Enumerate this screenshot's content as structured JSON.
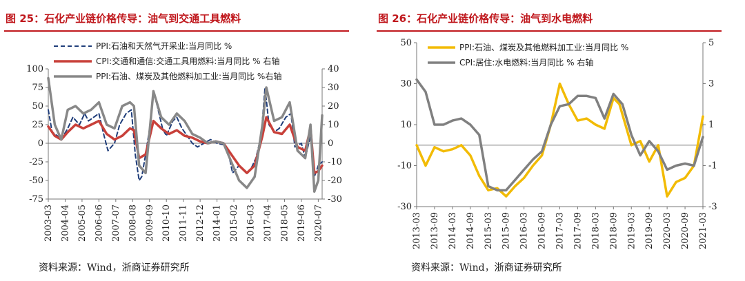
{
  "chart_data": [
    {
      "type": "line",
      "title": "图 25：石化产业链价格传导：油气到交通工具燃料",
      "source": "资料来源：Wind，浙商证券研究所",
      "ylim_left": [
        -75,
        100
      ],
      "yticks_left": [
        100,
        75,
        50,
        25,
        0,
        -25,
        -50,
        -75
      ],
      "ylim_right": [
        -30,
        40
      ],
      "yticks_right": [
        40,
        30,
        20,
        10,
        0,
        -10,
        -20,
        -30
      ],
      "x_start": "2003-03",
      "x_end": "2020-10",
      "x_ticks": [
        "2003-03",
        "2004-04",
        "2005-05",
        "2006-06",
        "2007-07",
        "2008-08",
        "2009-09",
        "2010-10",
        "2011-11",
        "2012-12",
        "2014-01",
        "2015-02",
        "2016-03",
        "2017-04",
        "2018-05",
        "2019-06",
        "2020-07"
      ],
      "series": [
        {
          "name": "PPI:石油和天然气开采业:当月同比 %",
          "axis": "left",
          "style": "dashed",
          "color": "#1f3d7a",
          "points": [
            [
              "2003-03",
              45
            ],
            [
              "2003-06",
              15
            ],
            [
              "2003-10",
              10
            ],
            [
              "2004-01",
              5
            ],
            [
              "2004-06",
              20
            ],
            [
              "2004-10",
              35
            ],
            [
              "2005-03",
              25
            ],
            [
              "2005-07",
              40
            ],
            [
              "2005-10",
              30
            ],
            [
              "2006-02",
              35
            ],
            [
              "2006-06",
              40
            ],
            [
              "2006-10",
              10
            ],
            [
              "2007-01",
              -10
            ],
            [
              "2007-06",
              0
            ],
            [
              "2007-10",
              25
            ],
            [
              "2008-03",
              40
            ],
            [
              "2008-07",
              45
            ],
            [
              "2008-10",
              -15
            ],
            [
              "2009-01",
              -50
            ],
            [
              "2009-03",
              -45
            ],
            [
              "2009-06",
              -15
            ],
            [
              "2009-10",
              30
            ],
            [
              "2009-12",
              70
            ],
            [
              "2010-03",
              50
            ],
            [
              "2010-07",
              20
            ],
            [
              "2010-10",
              10
            ],
            [
              "2011-03",
              30
            ],
            [
              "2011-06",
              35
            ],
            [
              "2011-10",
              20
            ],
            [
              "2012-02",
              10
            ],
            [
              "2012-06",
              0
            ],
            [
              "2012-10",
              -5
            ],
            [
              "2013-03",
              0
            ],
            [
              "2013-08",
              5
            ],
            [
              "2014-01",
              0
            ],
            [
              "2014-06",
              -2
            ],
            [
              "2014-10",
              -15
            ],
            [
              "2015-01",
              -40
            ],
            [
              "2015-06",
              -30
            ],
            [
              "2015-12",
              -40
            ],
            [
              "2016-03",
              -35
            ],
            [
              "2016-07",
              -20
            ],
            [
              "2016-11",
              10
            ],
            [
              "2017-02",
              75
            ],
            [
              "2017-05",
              25
            ],
            [
              "2017-09",
              15
            ],
            [
              "2018-01",
              20
            ],
            [
              "2018-06",
              35
            ],
            [
              "2018-10",
              40
            ],
            [
              "2019-01",
              -5
            ],
            [
              "2019-06",
              0
            ],
            [
              "2019-09",
              -20
            ],
            [
              "2020-01",
              10
            ],
            [
              "2020-04",
              -45
            ],
            [
              "2020-07",
              -30
            ],
            [
              "2020-10",
              -25
            ]
          ]
        },
        {
          "name": "CPI:交通和通信:交通工具用燃料:当月同比 %  右轴",
          "axis": "right",
          "style": "solid",
          "color": "#c8403a",
          "points": [
            [
              "2003-03",
              9
            ],
            [
              "2003-08",
              4
            ],
            [
              "2004-01",
              2
            ],
            [
              "2004-06",
              6
            ],
            [
              "2004-12",
              10
            ],
            [
              "2005-06",
              8
            ],
            [
              "2005-12",
              10
            ],
            [
              "2006-06",
              12
            ],
            [
              "2006-12",
              5
            ],
            [
              "2007-06",
              2
            ],
            [
              "2007-12",
              4
            ],
            [
              "2008-06",
              8
            ],
            [
              "2008-09",
              7
            ],
            [
              "2009-01",
              -8
            ],
            [
              "2009-06",
              -6
            ],
            [
              "2009-12",
              12
            ],
            [
              "2010-06",
              8
            ],
            [
              "2010-12",
              5
            ],
            [
              "2011-06",
              7
            ],
            [
              "2011-12",
              4
            ],
            [
              "2012-06",
              3
            ],
            [
              "2012-12",
              1
            ],
            [
              "2013-06",
              0
            ],
            [
              "2013-12",
              1
            ],
            [
              "2014-06",
              0
            ],
            [
              "2014-12",
              -6
            ],
            [
              "2015-06",
              -12
            ],
            [
              "2015-12",
              -16
            ],
            [
              "2016-06",
              -12
            ],
            [
              "2016-12",
              4
            ],
            [
              "2017-03",
              14
            ],
            [
              "2017-09",
              6
            ],
            [
              "2018-03",
              5
            ],
            [
              "2018-09",
              10
            ],
            [
              "2019-03",
              -2
            ],
            [
              "2019-09",
              -4
            ],
            [
              "2020-01",
              8
            ],
            [
              "2020-04",
              -16
            ],
            [
              "2020-07",
              -15
            ],
            [
              "2020-10",
              -12
            ]
          ]
        },
        {
          "name": "PPI:石油、煤炭及其他燃料加工业:当月同比 %右轴",
          "axis": "right",
          "style": "solid",
          "color": "#888888",
          "points": [
            [
              "2003-03",
              35
            ],
            [
              "2003-08",
              10
            ],
            [
              "2004-01",
              2
            ],
            [
              "2004-06",
              18
            ],
            [
              "2004-12",
              20
            ],
            [
              "2005-06",
              16
            ],
            [
              "2005-12",
              18
            ],
            [
              "2006-06",
              22
            ],
            [
              "2006-12",
              10
            ],
            [
              "2007-06",
              8
            ],
            [
              "2007-12",
              20
            ],
            [
              "2008-06",
              22
            ],
            [
              "2008-09",
              20
            ],
            [
              "2009-01",
              -12
            ],
            [
              "2009-06",
              -16
            ],
            [
              "2009-12",
              28
            ],
            [
              "2010-06",
              14
            ],
            [
              "2010-12",
              10
            ],
            [
              "2011-06",
              16
            ],
            [
              "2011-12",
              12
            ],
            [
              "2012-06",
              5
            ],
            [
              "2012-12",
              3
            ],
            [
              "2013-06",
              0
            ],
            [
              "2013-12",
              1
            ],
            [
              "2014-06",
              0
            ],
            [
              "2014-12",
              -10
            ],
            [
              "2015-06",
              -20
            ],
            [
              "2015-12",
              -24
            ],
            [
              "2016-06",
              -18
            ],
            [
              "2016-12",
              10
            ],
            [
              "2017-03",
              30
            ],
            [
              "2017-09",
              12
            ],
            [
              "2018-03",
              14
            ],
            [
              "2018-09",
              22
            ],
            [
              "2019-03",
              -4
            ],
            [
              "2019-09",
              -8
            ],
            [
              "2020-01",
              10
            ],
            [
              "2020-04",
              -26
            ],
            [
              "2020-07",
              -20
            ],
            [
              "2020-10",
              15
            ]
          ]
        }
      ]
    },
    {
      "type": "line",
      "title": "图 26：石化产业链价格传导：油气到水电燃料",
      "source": "资料来源：Wind，浙商证券研究所",
      "ylim_left": [
        -30,
        50
      ],
      "yticks_left": [
        50,
        30,
        10,
        -10,
        -30
      ],
      "ylim_right": [
        -3,
        5
      ],
      "yticks_right": [
        5,
        3,
        1,
        -1,
        -3
      ],
      "x_start": "2013-03",
      "x_end": "2021-03",
      "x_ticks": [
        "2013-03",
        "2013-09",
        "2014-03",
        "2014-09",
        "2015-03",
        "2015-09",
        "2016-03",
        "2016-09",
        "2017-03",
        "2017-09",
        "2018-03",
        "2018-09",
        "2019-03",
        "2019-09",
        "2020-03",
        "2020-09",
        "2021-03"
      ],
      "series": [
        {
          "name": "PPI:石油、煤炭及其他燃料加工业:当月同比 %",
          "axis": "left",
          "style": "solid",
          "color": "#f2bb05",
          "points": [
            [
              "2013-03",
              0
            ],
            [
              "2013-06",
              -10
            ],
            [
              "2013-09",
              -1
            ],
            [
              "2013-12",
              -3
            ],
            [
              "2014-03",
              -2
            ],
            [
              "2014-06",
              0
            ],
            [
              "2014-09",
              -5
            ],
            [
              "2014-12",
              -15
            ],
            [
              "2015-03",
              -22
            ],
            [
              "2015-06",
              -21
            ],
            [
              "2015-09",
              -25
            ],
            [
              "2015-12",
              -20
            ],
            [
              "2016-03",
              -16
            ],
            [
              "2016-06",
              -10
            ],
            [
              "2016-09",
              -5
            ],
            [
              "2016-12",
              10
            ],
            [
              "2017-03",
              30
            ],
            [
              "2017-06",
              20
            ],
            [
              "2017-09",
              12
            ],
            [
              "2017-12",
              13
            ],
            [
              "2018-03",
              10
            ],
            [
              "2018-06",
              8
            ],
            [
              "2018-09",
              23
            ],
            [
              "2018-11",
              20
            ],
            [
              "2019-03",
              0
            ],
            [
              "2019-06",
              2
            ],
            [
              "2019-09",
              -8
            ],
            [
              "2019-12",
              0
            ],
            [
              "2020-03",
              -25
            ],
            [
              "2020-06",
              -18
            ],
            [
              "2020-09",
              -16
            ],
            [
              "2020-12",
              -10
            ],
            [
              "2021-03",
              14
            ]
          ]
        },
        {
          "name": "CPI:居住:水电燃料:当月同比 % 右轴",
          "axis": "right",
          "style": "solid",
          "color": "#808080",
          "points": [
            [
              "2013-03",
              3.2
            ],
            [
              "2013-06",
              2.6
            ],
            [
              "2013-09",
              1.0
            ],
            [
              "2013-12",
              1.0
            ],
            [
              "2014-03",
              1.2
            ],
            [
              "2014-06",
              1.3
            ],
            [
              "2014-09",
              1.0
            ],
            [
              "2014-12",
              0.5
            ],
            [
              "2015-03",
              -2.0
            ],
            [
              "2015-06",
              -2.2
            ],
            [
              "2015-09",
              -2.2
            ],
            [
              "2015-12",
              -1.7
            ],
            [
              "2016-03",
              -1.2
            ],
            [
              "2016-06",
              -0.7
            ],
            [
              "2016-09",
              -0.3
            ],
            [
              "2016-12",
              1.0
            ],
            [
              "2017-03",
              1.9
            ],
            [
              "2017-06",
              2.0
            ],
            [
              "2017-09",
              2.4
            ],
            [
              "2017-12",
              2.4
            ],
            [
              "2018-03",
              2.3
            ],
            [
              "2018-06",
              1.3
            ],
            [
              "2018-09",
              2.5
            ],
            [
              "2018-12",
              2.0
            ],
            [
              "2019-03",
              0.5
            ],
            [
              "2019-06",
              -0.5
            ],
            [
              "2019-09",
              0.2
            ],
            [
              "2019-12",
              -0.3
            ],
            [
              "2020-03",
              -1.2
            ],
            [
              "2020-06",
              -1.0
            ],
            [
              "2020-09",
              -0.9
            ],
            [
              "2020-12",
              -1.0
            ],
            [
              "2021-03",
              0.4
            ]
          ]
        }
      ]
    }
  ]
}
